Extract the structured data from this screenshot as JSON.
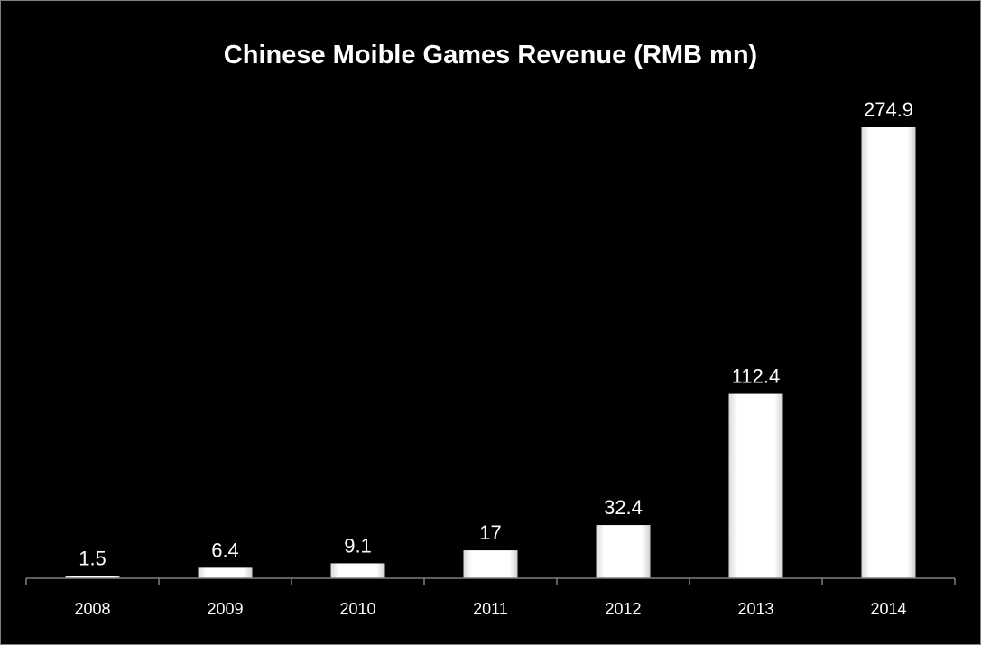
{
  "chart_data": {
    "type": "bar",
    "title": "Chinese Moible Games Revenue (RMB mn)",
    "categories": [
      "2008",
      "2009",
      "2010",
      "2011",
      "2012",
      "2013",
      "2014"
    ],
    "values": [
      1.5,
      6.4,
      9.1,
      17,
      32.4,
      112.4,
      274.9
    ],
    "data_labels": [
      "1.5",
      "6.4",
      "9.1",
      "17",
      "32.4",
      "112.4",
      "274.9"
    ],
    "xlabel": "",
    "ylabel": "",
    "ylim": [
      0,
      274.9
    ],
    "grid": false,
    "legend": "none",
    "colors": {
      "background": "#000000",
      "bar": "#ffffff",
      "axis": "#7f7f7f",
      "text": "#ffffff"
    }
  }
}
